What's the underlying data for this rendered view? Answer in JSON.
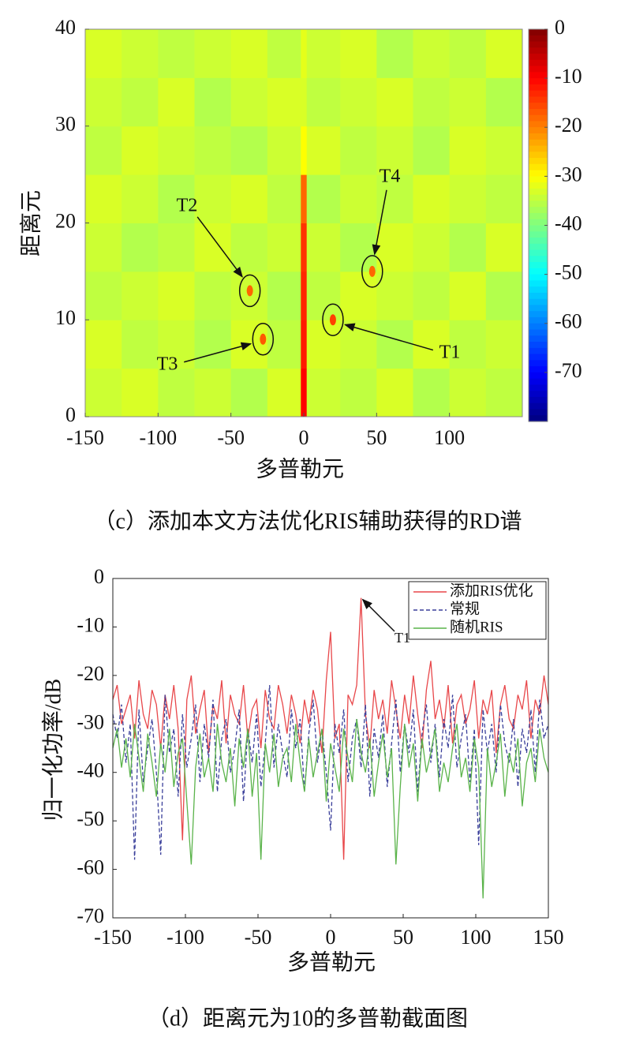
{
  "chart_data": [
    {
      "type": "heatmap",
      "caption": "（c）添加本文方法优化RIS辅助获得的RD谱",
      "xlabel": "多普勒元",
      "ylabel": "距离元",
      "xlim": [
        -150,
        150
      ],
      "ylim": [
        0,
        40
      ],
      "xticks": [
        -150,
        -100,
        -50,
        0,
        50,
        100
      ],
      "yticks": [
        0,
        10,
        20,
        30,
        40
      ],
      "clim": [
        -80,
        0
      ],
      "cticks": [
        0,
        -10,
        -20,
        -30,
        -40,
        -50,
        -60,
        -70
      ],
      "colormap": "jet",
      "x_edges": [
        -150,
        -125,
        -100,
        -75,
        -50,
        -25,
        -2,
        2,
        25,
        50,
        75,
        100,
        125,
        150
      ],
      "y_edges": [
        0,
        5,
        10,
        15,
        20,
        25,
        30,
        35,
        40
      ],
      "z": [
        [
          -34,
          -33,
          -35,
          -34,
          -36,
          -33,
          -10,
          -34,
          -35,
          -33,
          -36,
          -34,
          -35
        ],
        [
          -33,
          -35,
          -34,
          -36,
          -33,
          -35,
          -12,
          -33,
          -34,
          -36,
          -33,
          -35,
          -34
        ],
        [
          -35,
          -34,
          -33,
          -35,
          -34,
          -36,
          -13,
          -35,
          -33,
          -34,
          -35,
          -33,
          -36
        ],
        [
          -34,
          -36,
          -35,
          -33,
          -35,
          -34,
          -14,
          -34,
          -36,
          -33,
          -34,
          -36,
          -33
        ],
        [
          -33,
          -34,
          -36,
          -34,
          -33,
          -35,
          -18,
          -36,
          -34,
          -35,
          -33,
          -34,
          -35
        ],
        [
          -35,
          -33,
          -34,
          -35,
          -36,
          -34,
          -30,
          -33,
          -35,
          -34,
          -36,
          -33,
          -34
        ],
        [
          -34,
          -35,
          -33,
          -36,
          -34,
          -33,
          -33,
          -35,
          -34,
          -33,
          -35,
          -34,
          -36
        ],
        [
          -33,
          -34,
          -35,
          -34,
          -33,
          -35,
          -32,
          -34,
          -33,
          -36,
          -34,
          -35,
          -33
        ]
      ],
      "targets": [
        {
          "label": "T1",
          "x": 20,
          "y": 10,
          "value": -15
        },
        {
          "label": "T2",
          "x": -37,
          "y": 13,
          "value": -18
        },
        {
          "label": "T3",
          "x": -28,
          "y": 8,
          "value": -17
        },
        {
          "label": "T4",
          "x": 47,
          "y": 15,
          "value": -18
        }
      ]
    },
    {
      "type": "line",
      "caption": "（d）距离元为10的多普勒截面图",
      "xlabel": "多普勒元",
      "ylabel": "归一化功率/dB",
      "xlim": [
        -150,
        150
      ],
      "ylim": [
        -70,
        0
      ],
      "xticks": [
        -150,
        -100,
        -50,
        0,
        50,
        100,
        150
      ],
      "yticks": [
        0,
        -10,
        -20,
        -30,
        -40,
        -50,
        -60,
        -70
      ],
      "annotation": {
        "text": "T1",
        "x": 21,
        "y": -4
      },
      "x": [
        -150,
        -147,
        -144,
        -141,
        -138,
        -135,
        -132,
        -129,
        -126,
        -123,
        -120,
        -117,
        -114,
        -111,
        -108,
        -105,
        -102,
        -99,
        -96,
        -93,
        -90,
        -87,
        -84,
        -81,
        -78,
        -75,
        -72,
        -69,
        -66,
        -63,
        -60,
        -57,
        -54,
        -51,
        -48,
        -45,
        -42,
        -39,
        -36,
        -33,
        -30,
        -27,
        -24,
        -21,
        -18,
        -15,
        -12,
        -9,
        -6,
        -3,
        0,
        3,
        6,
        9,
        12,
        15,
        18,
        21,
        24,
        27,
        30,
        33,
        36,
        39,
        42,
        45,
        48,
        51,
        54,
        57,
        60,
        63,
        66,
        69,
        72,
        75,
        78,
        81,
        84,
        87,
        90,
        93,
        96,
        99,
        102,
        105,
        108,
        111,
        114,
        117,
        120,
        123,
        126,
        129,
        132,
        135,
        138,
        141,
        144,
        147,
        150
      ],
      "series": [
        {
          "name": "添加RIS优化",
          "color": "#e8474a",
          "style": "solid",
          "values": [
            -25,
            -22,
            -30,
            -27,
            -24,
            -33,
            -21,
            -28,
            -31,
            -23,
            -26,
            -35,
            -24,
            -29,
            -22,
            -31,
            -54,
            -25,
            -20,
            -32,
            -27,
            -23,
            -36,
            -26,
            -29,
            -21,
            -34,
            -24,
            -28,
            -30,
            -22,
            -33,
            -27,
            -25,
            -35,
            -23,
            -29,
            -31,
            -22,
            -26,
            -32,
            -24,
            -28,
            -34,
            -25,
            -30,
            -23,
            -27,
            -36,
            -21,
            -11,
            -33,
            -30,
            -58,
            -24,
            -26,
            -22,
            -4,
            -28,
            -35,
            -23,
            -29,
            -25,
            -32,
            -21,
            -27,
            -33,
            -24,
            -30,
            -20,
            -28,
            -35,
            -23,
            -17,
            -29,
            -25,
            -31,
            -22,
            -34,
            -26,
            -24,
            -30,
            -27,
            -21,
            -33,
            -25,
            -28,
            -23,
            -36,
            -26,
            -22,
            -29,
            -31,
            -24,
            -27,
            -21,
            -33,
            -25,
            -28,
            -20,
            -26
          ]
        },
        {
          "name": "常规",
          "color": "#3a3f9a",
          "style": "dashed",
          "values": [
            -28,
            -33,
            -26,
            -38,
            -30,
            -58,
            -27,
            -42,
            -35,
            -29,
            -40,
            -57,
            -24,
            -36,
            -31,
            -45,
            -28,
            -39,
            -33,
            -26,
            -42,
            -30,
            -37,
            -25,
            -44,
            -33,
            -29,
            -40,
            -35,
            -27,
            -46,
            -31,
            -38,
            -28,
            -43,
            -34,
            -22,
            -39,
            -30,
            -36,
            -41,
            -27,
            -35,
            -29,
            -44,
            -32,
            -25,
            -38,
            -31,
            -40,
            -52,
            -30,
            -36,
            -27,
            -42,
            -33,
            -29,
            -39,
            -26,
            -45,
            -31,
            -37,
            -28,
            -43,
            -34,
            -25,
            -40,
            -30,
            -36,
            -27,
            -44,
            -32,
            -26,
            -38,
            -30,
            -41,
            -29,
            -35,
            -24,
            -39,
            -33,
            -28,
            -42,
            -31,
            -55,
            -27,
            -36,
            -30,
            -40,
            -26,
            -34,
            -38,
            -29,
            -43,
            -31,
            -36,
            -27,
            -40,
            -25,
            -33,
            -30
          ]
        },
        {
          "name": "随机RIS",
          "color": "#5ab34a",
          "style": "solid",
          "values": [
            -35,
            -31,
            -39,
            -33,
            -41,
            -30,
            -37,
            -44,
            -32,
            -38,
            -45,
            -34,
            -40,
            -31,
            -43,
            -36,
            -33,
            -46,
            -59,
            -39,
            -32,
            -41,
            -37,
            -44,
            -30,
            -38,
            -42,
            -35,
            -47,
            -33,
            -39,
            -31,
            -45,
            -36,
            -58,
            -34,
            -40,
            -32,
            -43,
            -37,
            -35,
            -42,
            -30,
            -38,
            -44,
            -33,
            -41,
            -36,
            -31,
            -46,
            -34,
            -39,
            -44,
            -31,
            -37,
            -42,
            -29,
            -36,
            -40,
            -33,
            -45,
            -38,
            -32,
            -41,
            -35,
            -59,
            -43,
            -30,
            -39,
            -34,
            -46,
            -33,
            -40,
            -36,
            -31,
            -44,
            -38,
            -42,
            -35,
            -30,
            -41,
            -37,
            -44,
            -33,
            -39,
            -66,
            -35,
            -43,
            -38,
            -32,
            -45,
            -36,
            -40,
            -33,
            -47,
            -38,
            -35,
            -42,
            -31,
            -37,
            -40
          ]
        }
      ]
    }
  ]
}
